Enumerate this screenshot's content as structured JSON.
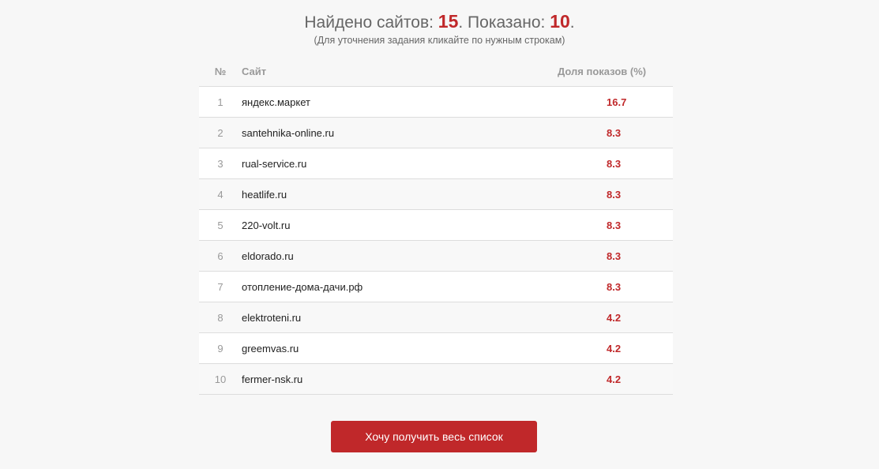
{
  "header": {
    "found_label": "Найдено сайтов: ",
    "found_count": "15",
    "shown_label": ". Показано: ",
    "shown_count": "10",
    "end": ".",
    "subtitle": "(Для уточнения задания кликайте по нужным строкам)"
  },
  "table": {
    "columns": [
      "№",
      "Сайт",
      "Доля показов (%)"
    ],
    "rows": [
      {
        "n": "1",
        "site": "яндекс.маркет",
        "share": "16.7"
      },
      {
        "n": "2",
        "site": "santehnika-online.ru",
        "share": "8.3"
      },
      {
        "n": "3",
        "site": "rual-service.ru",
        "share": "8.3"
      },
      {
        "n": "4",
        "site": "heatlife.ru",
        "share": "8.3"
      },
      {
        "n": "5",
        "site": "220-volt.ru",
        "share": "8.3"
      },
      {
        "n": "6",
        "site": "eldorado.ru",
        "share": "8.3"
      },
      {
        "n": "7",
        "site": "отопление-дома-дачи.рф",
        "share": "8.3"
      },
      {
        "n": "8",
        "site": "elektroteni.ru",
        "share": "4.2"
      },
      {
        "n": "9",
        "site": "greemvas.ru",
        "share": "4.2"
      },
      {
        "n": "10",
        "site": "fermer-nsk.ru",
        "share": "4.2"
      }
    ]
  },
  "button": {
    "label": "Хочу получить весь список"
  },
  "colors": {
    "accent": "#c0282a",
    "background": "#f7f7f7"
  }
}
